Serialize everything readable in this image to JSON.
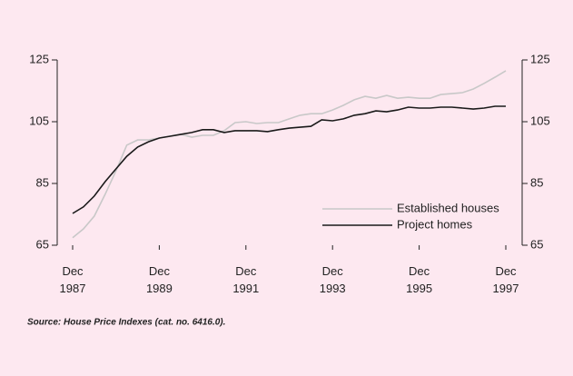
{
  "chart_data": {
    "type": "line",
    "source": "Source: House Price Indexes (cat. no. 6416.0).",
    "categories": [
      "Dec 1987",
      null,
      null,
      null,
      null,
      null,
      null,
      null,
      "Dec 1989",
      null,
      null,
      null,
      null,
      null,
      null,
      null,
      "Dec 1991",
      null,
      null,
      null,
      null,
      null,
      null,
      null,
      "Dec 1993",
      null,
      null,
      null,
      null,
      null,
      null,
      null,
      "Dec 1995",
      null,
      null,
      null,
      null,
      null,
      null,
      null,
      "Dec 1997"
    ],
    "series": [
      {
        "name": "Established houses",
        "color": "#c8c8c8",
        "values": [
          67.4,
          70.3,
          74.4,
          81.5,
          89.1,
          97.4,
          99.1,
          99.1,
          99.7,
          100.3,
          100.9,
          100,
          100.6,
          100.6,
          102.1,
          104.7,
          105,
          104.4,
          104.7,
          104.7,
          105.9,
          107.1,
          107.6,
          107.6,
          108.8,
          110.3,
          112.1,
          113.2,
          112.6,
          113.5,
          112.6,
          112.9,
          112.6,
          112.6,
          113.8,
          114.1,
          114.4,
          115.6,
          117.4,
          119.4,
          121.5
        ]
      },
      {
        "name": "Project homes",
        "color": "#1a1a1a",
        "values": [
          75.3,
          77.4,
          80.9,
          85.6,
          89.7,
          93.8,
          96.8,
          98.5,
          99.7,
          100.3,
          100.9,
          101.5,
          102.4,
          102.4,
          101.5,
          102.1,
          102.1,
          102.1,
          101.8,
          102.4,
          102.9,
          103.2,
          103.5,
          105.6,
          105.3,
          105.9,
          107.1,
          107.6,
          108.5,
          108.2,
          108.8,
          109.7,
          109.4,
          109.4,
          109.7,
          109.7,
          109.4,
          109.1,
          109.4,
          110,
          110
        ]
      }
    ],
    "ylim": [
      65,
      125
    ],
    "yticks": [
      65,
      85,
      105,
      125
    ],
    "y2lim": [
      65,
      125
    ],
    "y2ticks": [
      65,
      85,
      105,
      125
    ],
    "legend": "lower right"
  }
}
